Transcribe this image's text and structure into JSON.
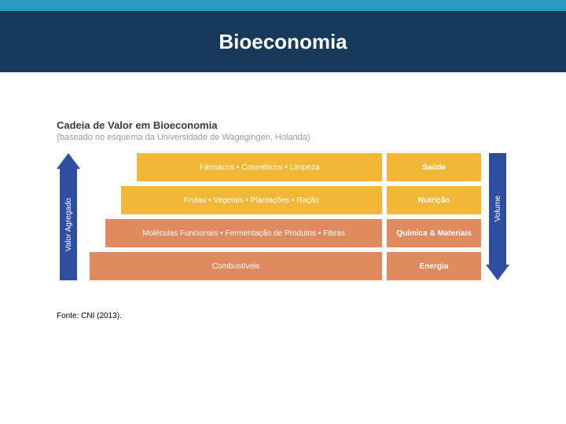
{
  "colors": {
    "top_bar": "#2a9bbf",
    "header_bg": "#173a5a",
    "arrow": "#2e4fa0",
    "title_text": "#3a3a3a",
    "subtitle_text": "#9a9a9a"
  },
  "header": {
    "title": "Bioeconomia"
  },
  "chart": {
    "title": "Cadeia de Valor em Bioeconomia",
    "subtitle": "(baseado no esquema da Universidade de Wagegingen, Holanda)",
    "left_arrow_label": "Valor Agregado",
    "right_arrow_label": "Volume",
    "rows": [
      {
        "items_text": "Fármacos  •  Cosméticos  •  Limpeza",
        "category": "Saúde",
        "left_color": "#f3b738",
        "right_color": "#f3b738",
        "indent": 60
      },
      {
        "items_text": "Frutas  •  Vegetais  •  Plantações  •  Ração",
        "category": "Nutrição",
        "left_color": "#f3b738",
        "right_color": "#f3b738",
        "indent": 40
      },
      {
        "items_text": "Moléculas Funcionais  •  Fermentação de Produtos  •  Fibras",
        "category": "Química & Materiais",
        "left_color": "#e08a5f",
        "right_color": "#e08a5f",
        "indent": 20
      },
      {
        "items_text": "Combustíveis",
        "category": "Energia",
        "left_color": "#e08a5f",
        "right_color": "#e08a5f",
        "indent": 0
      }
    ]
  },
  "source": "Fonte:  CNI (2013)."
}
